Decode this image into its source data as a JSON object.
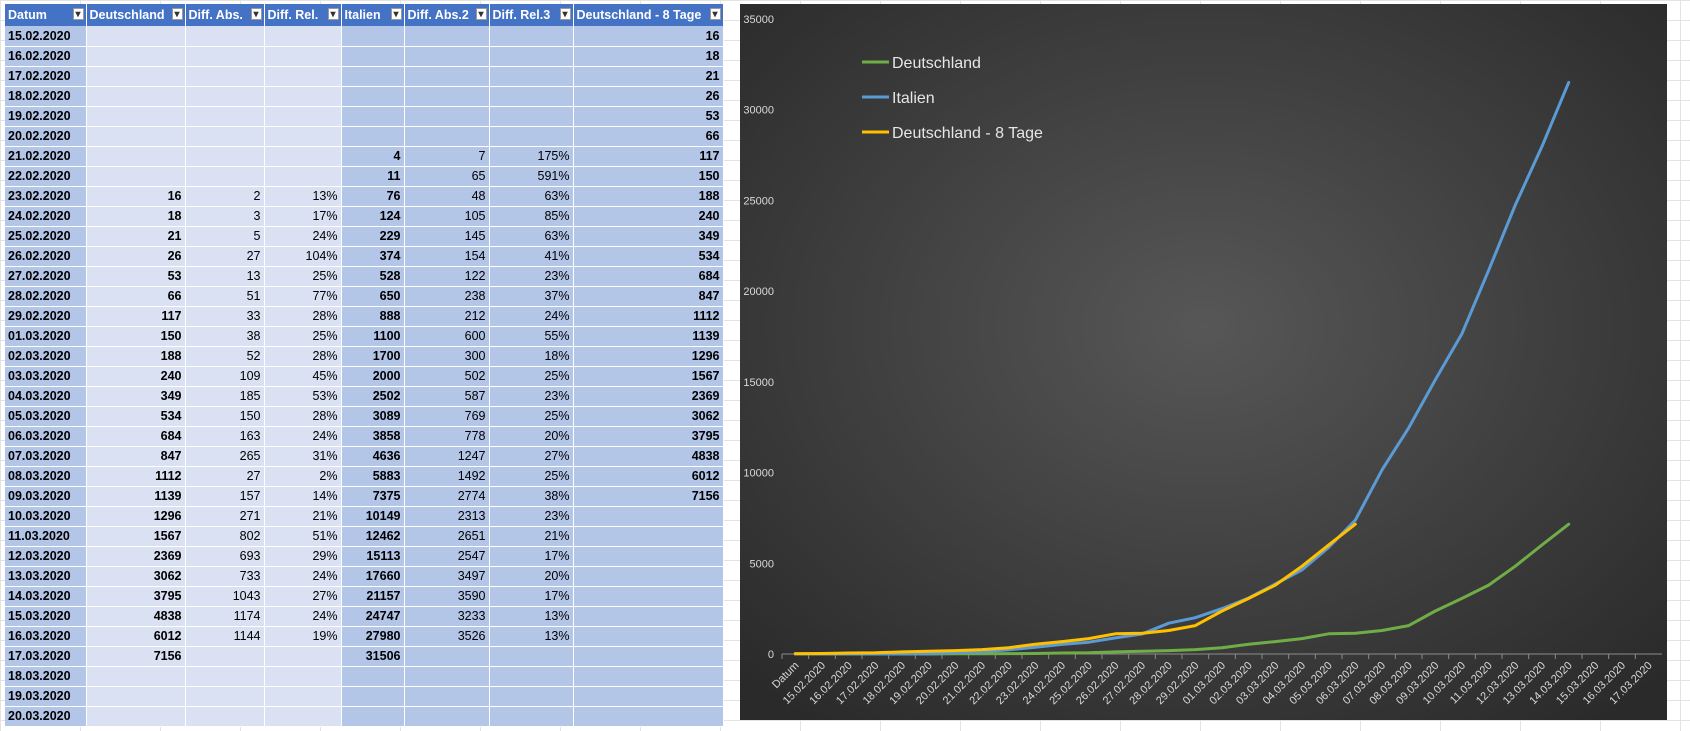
{
  "table": {
    "headers": [
      "Datum",
      "Deutschland",
      "Diff. Abs.",
      "Diff. Rel.",
      "Italien",
      "Diff. Abs.2",
      "Diff. Rel.3",
      "Deutschland - 8 Tage"
    ],
    "rows": [
      [
        "15.02.2020",
        null,
        null,
        null,
        null,
        null,
        null,
        16
      ],
      [
        "16.02.2020",
        null,
        null,
        null,
        null,
        null,
        null,
        18
      ],
      [
        "17.02.2020",
        null,
        null,
        null,
        null,
        null,
        null,
        21
      ],
      [
        "18.02.2020",
        null,
        null,
        null,
        null,
        null,
        null,
        26
      ],
      [
        "19.02.2020",
        null,
        null,
        null,
        null,
        null,
        null,
        53
      ],
      [
        "20.02.2020",
        null,
        null,
        null,
        null,
        null,
        null,
        66
      ],
      [
        "21.02.2020",
        null,
        null,
        null,
        4,
        7,
        "175%",
        117
      ],
      [
        "22.02.2020",
        null,
        null,
        null,
        11,
        65,
        "591%",
        150
      ],
      [
        "23.02.2020",
        16,
        2,
        "13%",
        76,
        48,
        "63%",
        188
      ],
      [
        "24.02.2020",
        18,
        3,
        "17%",
        124,
        105,
        "85%",
        240
      ],
      [
        "25.02.2020",
        21,
        5,
        "24%",
        229,
        145,
        "63%",
        349
      ],
      [
        "26.02.2020",
        26,
        27,
        "104%",
        374,
        154,
        "41%",
        534
      ],
      [
        "27.02.2020",
        53,
        13,
        "25%",
        528,
        122,
        "23%",
        684
      ],
      [
        "28.02.2020",
        66,
        51,
        "77%",
        650,
        238,
        "37%",
        847
      ],
      [
        "29.02.2020",
        117,
        33,
        "28%",
        888,
        212,
        "24%",
        1112
      ],
      [
        "01.03.2020",
        150,
        38,
        "25%",
        1100,
        600,
        "55%",
        1139
      ],
      [
        "02.03.2020",
        188,
        52,
        "28%",
        1700,
        300,
        "18%",
        1296
      ],
      [
        "03.03.2020",
        240,
        109,
        "45%",
        2000,
        502,
        "25%",
        1567
      ],
      [
        "04.03.2020",
        349,
        185,
        "53%",
        2502,
        587,
        "23%",
        2369
      ],
      [
        "05.03.2020",
        534,
        150,
        "28%",
        3089,
        769,
        "25%",
        3062
      ],
      [
        "06.03.2020",
        684,
        163,
        "24%",
        3858,
        778,
        "20%",
        3795
      ],
      [
        "07.03.2020",
        847,
        265,
        "31%",
        4636,
        1247,
        "27%",
        4838
      ],
      [
        "08.03.2020",
        1112,
        27,
        "2%",
        5883,
        1492,
        "25%",
        6012
      ],
      [
        "09.03.2020",
        1139,
        157,
        "14%",
        7375,
        2774,
        "38%",
        7156
      ],
      [
        "10.03.2020",
        1296,
        271,
        "21%",
        10149,
        2313,
        "23%",
        null
      ],
      [
        "11.03.2020",
        1567,
        802,
        "51%",
        12462,
        2651,
        "21%",
        null
      ],
      [
        "12.03.2020",
        2369,
        693,
        "29%",
        15113,
        2547,
        "17%",
        null
      ],
      [
        "13.03.2020",
        3062,
        733,
        "24%",
        17660,
        3497,
        "20%",
        null
      ],
      [
        "14.03.2020",
        3795,
        1043,
        "27%",
        21157,
        3590,
        "17%",
        null
      ],
      [
        "15.03.2020",
        4838,
        1174,
        "24%",
        24747,
        3233,
        "13%",
        null
      ],
      [
        "16.03.2020",
        6012,
        1144,
        "19%",
        27980,
        3526,
        "13%",
        null
      ],
      [
        "17.03.2020",
        7156,
        null,
        null,
        31506,
        null,
        null,
        null
      ],
      [
        "18.03.2020",
        null,
        null,
        null,
        null,
        null,
        null,
        null
      ],
      [
        "19.03.2020",
        null,
        null,
        null,
        null,
        null,
        null,
        null
      ],
      [
        "20.03.2020",
        null,
        null,
        null,
        null,
        null,
        null,
        null
      ]
    ]
  },
  "chart_data": {
    "type": "line",
    "categories": [
      "Datum",
      "15.02.2020",
      "16.02.2020",
      "17.02.2020",
      "18.02.2020",
      "19.02.2020",
      "20.02.2020",
      "21.02.2020",
      "22.02.2020",
      "23.02.2020",
      "24.02.2020",
      "25.02.2020",
      "26.02.2020",
      "27.02.2020",
      "28.02.2020",
      "29.02.2020",
      "01.03.2020",
      "02.03.2020",
      "03.03.2020",
      "04.03.2020",
      "05.03.2020",
      "06.03.2020",
      "07.03.2020",
      "08.03.2020",
      "09.03.2020",
      "10.03.2020",
      "11.03.2020",
      "12.03.2020",
      "13.03.2020",
      "14.03.2020",
      "15.03.2020",
      "16.03.2020",
      "17.03.2020"
    ],
    "series": [
      {
        "name": "Deutschland",
        "color": "#70ad47",
        "values": [
          0,
          0,
          0,
          0,
          0,
          0,
          16,
          18,
          21,
          26,
          53,
          66,
          117,
          150,
          188,
          240,
          349,
          534,
          684,
          847,
          1112,
          1139,
          1296,
          1567,
          2369,
          3062,
          3795,
          4838,
          6012,
          7156,
          null,
          null,
          null
        ]
      },
      {
        "name": "Italien",
        "color": "#5b9bd5",
        "values": [
          0,
          0,
          0,
          0,
          4,
          11,
          76,
          124,
          229,
          374,
          528,
          650,
          888,
          1100,
          1700,
          2000,
          2502,
          3089,
          3858,
          4636,
          5883,
          7375,
          10149,
          12462,
          15113,
          17660,
          21157,
          24747,
          27980,
          31506,
          null,
          null,
          null
        ]
      },
      {
        "name": "Deutschland - 8 Tage",
        "color": "#ffc000",
        "values": [
          21,
          26,
          53,
          66,
          117,
          150,
          188,
          240,
          349,
          534,
          684,
          847,
          1112,
          1139,
          1296,
          1567,
          2369,
          3062,
          3795,
          4838,
          6012,
          7156,
          null,
          null,
          null,
          null,
          null,
          null,
          null,
          null,
          null,
          null,
          null
        ]
      }
    ],
    "ylim": [
      0,
      35000
    ],
    "yticks": [
      0,
      5000,
      10000,
      15000,
      20000,
      25000,
      30000,
      35000
    ],
    "legend": "upper left"
  }
}
